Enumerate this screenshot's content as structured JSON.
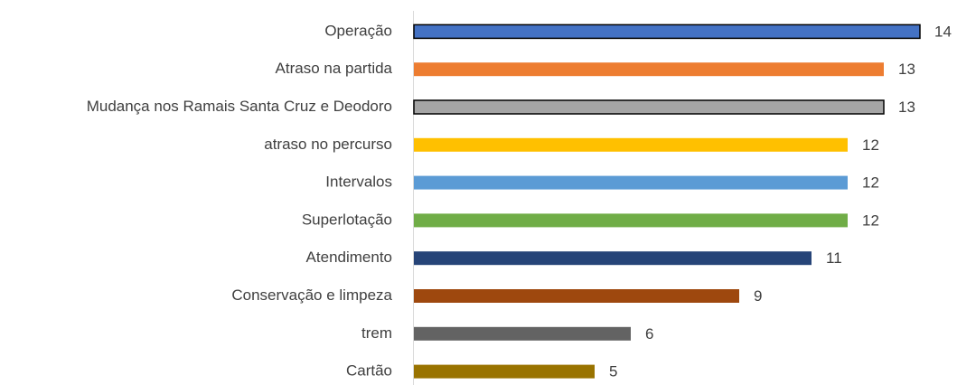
{
  "chart_data": {
    "type": "barh",
    "categories": [
      "Operação",
      "Atraso na partida",
      "Mudança nos Ramais Santa Cruz e Deodoro",
      "atraso no percurso",
      "Intervalos",
      "Superlotação",
      "Atendimento",
      "Conservação e limpeza",
      "trem",
      "Cartão"
    ],
    "values": [
      14,
      13,
      13,
      12,
      12,
      12,
      11,
      9,
      6,
      5
    ],
    "colors": [
      "#4472c4",
      "#ed7d31",
      "#a5a5a5",
      "#ffc000",
      "#5b9bd5",
      "#70ad47",
      "#264478",
      "#9e480e",
      "#636363",
      "#997300"
    ],
    "edgecolors": [
      "#000000",
      null,
      "#000000",
      null,
      null,
      null,
      null,
      null,
      null,
      null
    ]
  }
}
